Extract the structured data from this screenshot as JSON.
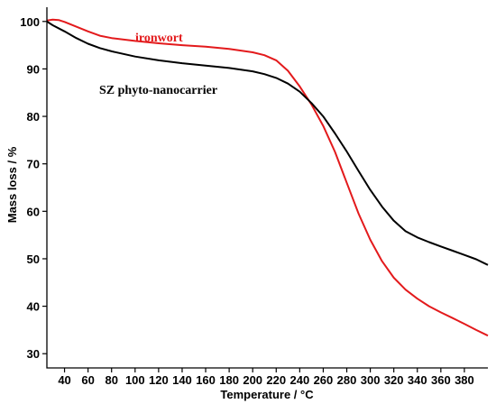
{
  "chart_data": {
    "type": "line",
    "xlabel": "Temperature / °C",
    "ylabel": "Mass loss / %",
    "xlim": [
      25,
      400
    ],
    "ylim": [
      27,
      103
    ],
    "x_ticks": [
      40,
      60,
      80,
      100,
      120,
      140,
      160,
      180,
      200,
      220,
      240,
      260,
      280,
      300,
      320,
      340,
      360,
      380
    ],
    "y_ticks": [
      30,
      40,
      50,
      60,
      70,
      80,
      90,
      100
    ],
    "grid": false,
    "legend": "none",
    "series": [
      {
        "name": "ironwort",
        "color": "#e31a1c",
        "x": [
          25,
          30,
          35,
          40,
          50,
          60,
          70,
          80,
          100,
          120,
          140,
          160,
          180,
          200,
          210,
          220,
          230,
          240,
          250,
          260,
          270,
          280,
          290,
          300,
          310,
          320,
          330,
          340,
          350,
          360,
          370,
          380,
          390,
          400
        ],
        "y": [
          100.2,
          100.4,
          100.3,
          99.9,
          98.9,
          97.9,
          97.0,
          96.5,
          95.9,
          95.4,
          95.0,
          94.7,
          94.2,
          93.5,
          92.9,
          91.8,
          89.6,
          86.3,
          82.5,
          78.0,
          72.5,
          66.0,
          59.5,
          54.0,
          49.5,
          46.0,
          43.5,
          41.6,
          40.0,
          38.7,
          37.5,
          36.3,
          35.0,
          33.8
        ]
      },
      {
        "name": "SZ phyto-nanocarrier",
        "color": "#000000",
        "x": [
          25,
          30,
          40,
          50,
          60,
          70,
          80,
          100,
          120,
          140,
          160,
          180,
          200,
          210,
          220,
          230,
          240,
          250,
          260,
          270,
          280,
          290,
          300,
          310,
          320,
          330,
          340,
          350,
          360,
          370,
          380,
          390,
          400
        ],
        "y": [
          100.0,
          99.2,
          97.9,
          96.5,
          95.3,
          94.4,
          93.7,
          92.6,
          91.8,
          91.2,
          90.7,
          90.2,
          89.5,
          88.9,
          88.1,
          86.9,
          85.2,
          82.8,
          80.0,
          76.4,
          72.6,
          68.5,
          64.5,
          61.0,
          58.0,
          55.8,
          54.5,
          53.5,
          52.6,
          51.7,
          50.8,
          49.9,
          48.7
        ]
      }
    ]
  }
}
